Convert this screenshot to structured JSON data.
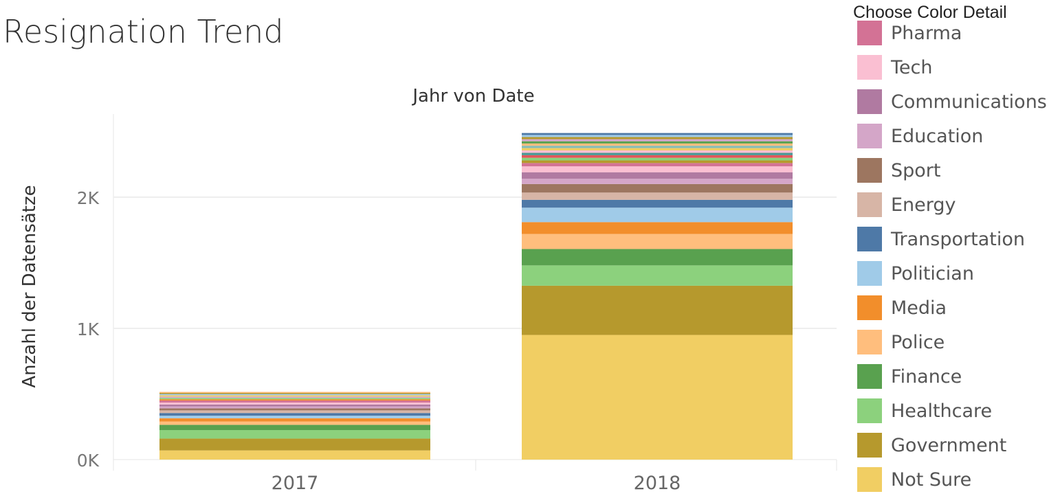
{
  "page": {
    "title": "Resignation Trend"
  },
  "legend": {
    "title": "Choose Color Detail"
  },
  "chart_data": {
    "type": "bar",
    "stacked": true,
    "title": "Resignation Trend",
    "xlabel": "Jahr von Date",
    "ylabel": "Anzahl der Datensätze",
    "categories": [
      "2017",
      "2018"
    ],
    "ylim": [
      0,
      2550
    ],
    "yticks": [
      {
        "value": 0,
        "label": "0K"
      },
      {
        "value": 1000,
        "label": "1K"
      },
      {
        "value": 2000,
        "label": "2K"
      }
    ],
    "grid": true,
    "legend_position": "right",
    "series": [
      {
        "name": "Not Sure",
        "color": "#F1CE63",
        "values": [
          70,
          950
        ]
      },
      {
        "name": "Government",
        "color": "#B6992D",
        "values": [
          90,
          375
        ]
      },
      {
        "name": "Healthcare",
        "color": "#8CD17D",
        "values": [
          65,
          155
        ]
      },
      {
        "name": "Finance",
        "color": "#59A14F",
        "values": [
          40,
          125
        ]
      },
      {
        "name": "Police",
        "color": "#FFBE7D",
        "values": [
          25,
          115
        ]
      },
      {
        "name": "Media",
        "color": "#F28E2B",
        "values": [
          25,
          90
        ]
      },
      {
        "name": "Politician",
        "color": "#A0CBE8",
        "values": [
          20,
          110
        ]
      },
      {
        "name": "Transportation",
        "color": "#4E79A7",
        "values": [
          20,
          60
        ]
      },
      {
        "name": "Energy",
        "color": "#D7B5A6",
        "values": [
          20,
          55
        ]
      },
      {
        "name": "Sport",
        "color": "#9D7660",
        "values": [
          15,
          65
        ]
      },
      {
        "name": "Education",
        "color": "#D4A6C8",
        "values": [
          15,
          40
        ]
      },
      {
        "name": "Communications",
        "color": "#B07AA1",
        "values": [
          15,
          50
        ]
      },
      {
        "name": "Tech",
        "color": "#FABFD2",
        "values": [
          15,
          45
        ]
      },
      {
        "name": "Pharma",
        "color": "#D37295",
        "values": [
          15,
          25
        ]
      }
    ],
    "other_segments": {
      "2017": [
        {
          "value": 10,
          "color": "#F28E2B"
        },
        {
          "value": 10,
          "color": "#8CD17D"
        },
        {
          "value": 10,
          "color": "#D4A6C8"
        },
        {
          "value": 10,
          "color": "#F1CE63"
        },
        {
          "value": 10,
          "color": "#A0CBE8"
        },
        {
          "value": 8,
          "color": "#B6992D"
        },
        {
          "value": 8,
          "color": "#FFBE7D"
        }
      ],
      "2018": [
        {
          "value": 20,
          "color": "#B6992D"
        },
        {
          "value": 20,
          "color": "#8CD17D"
        },
        {
          "value": 20,
          "color": "#E15759"
        },
        {
          "value": 18,
          "color": "#499894"
        },
        {
          "value": 18,
          "color": "#FABFD2"
        },
        {
          "value": 18,
          "color": "#F1CE63"
        },
        {
          "value": 18,
          "color": "#86BCB6"
        },
        {
          "value": 17,
          "color": "#FFBE7D"
        },
        {
          "value": 17,
          "color": "#59A14F"
        },
        {
          "value": 16,
          "color": "#D4A6C8"
        },
        {
          "value": 16,
          "color": "#B6992D"
        },
        {
          "value": 16,
          "color": "#A0CBE8"
        },
        {
          "value": 15,
          "color": "#4E79A7"
        }
      ]
    }
  }
}
